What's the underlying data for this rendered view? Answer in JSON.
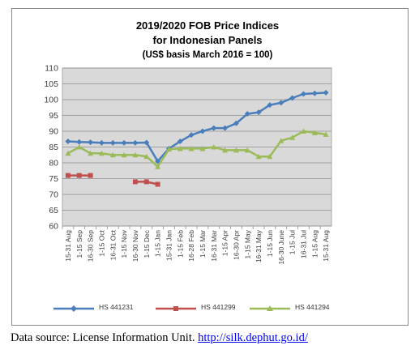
{
  "chart_data": {
    "type": "line",
    "title": "2019/2020 FOB Price Indices",
    "subtitle": "for Indonesian Panels",
    "note": "(US$ basis March 2016 = 100)",
    "categories": [
      "15-31 Aug",
      "1-15 Sep",
      "16-30 Sep",
      "1-15 Oct",
      "16-31 Oct",
      "1-15 Nov",
      "16-30 Nov",
      "1-15 Dec",
      "1-15 Jan",
      "15-31 Jan",
      "1-15 Feb",
      "16-28 Feb",
      "1-15 Mar",
      "16-31 Mar",
      "1-15 Apr",
      "16-30 Apr",
      "1-15 May",
      "16-31 May",
      "1-15 Jun",
      "16-30 June",
      "1-15 Jul",
      "16-31 Jul",
      "1-15 Aug",
      "15-31 Aug"
    ],
    "ylim": [
      60,
      110
    ],
    "yticks": [
      60,
      65,
      70,
      75,
      80,
      85,
      90,
      95,
      100,
      105,
      110
    ],
    "grid": true,
    "legend_position": "bottom",
    "series": [
      {
        "name": "HS 441231",
        "color": "#4a7ebb",
        "marker": "diamond",
        "values": [
          86.8,
          86.6,
          86.5,
          86.3,
          86.3,
          86.3,
          86.3,
          86.4,
          80.5,
          84.5,
          86.8,
          88.8,
          90.0,
          91.0,
          91.0,
          92.5,
          95.5,
          96.0,
          98.3,
          99.0,
          100.5,
          101.8,
          102.0,
          102.2
        ]
      },
      {
        "name": "HS 441299",
        "color": "#c0504d",
        "marker": "square",
        "values": [
          76.0,
          76.0,
          76.0,
          null,
          null,
          null,
          74.0,
          74.0,
          73.2,
          null,
          null,
          null,
          null,
          null,
          null,
          null,
          null,
          null,
          null,
          null,
          null,
          null,
          null,
          null
        ]
      },
      {
        "name": "HS 441294",
        "color": "#9bbb59",
        "marker": "triangle",
        "values": [
          83.0,
          85.0,
          83.0,
          83.0,
          82.5,
          82.5,
          82.5,
          82.0,
          78.8,
          84.3,
          84.5,
          84.5,
          84.5,
          85.0,
          84.0,
          84.0,
          84.0,
          82.0,
          82.0,
          87.0,
          88.0,
          90.0,
          89.5,
          89.0
        ]
      }
    ]
  },
  "footer": {
    "prefix": "Data source: License Information Unit.",
    "link": "http://silk.dephut.go.id/"
  }
}
